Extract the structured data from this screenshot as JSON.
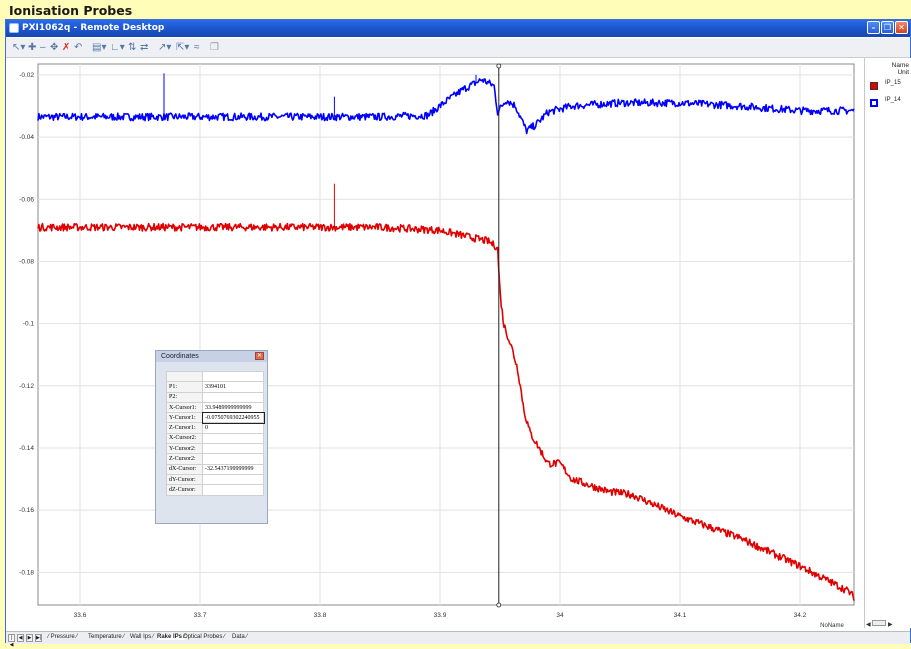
{
  "page_title": "Ionisation Probes",
  "window": {
    "title": "PXI1062q - Remote Desktop"
  },
  "legend": {
    "header_name": "Name",
    "header_unit": "Unit",
    "items": [
      {
        "label": "IP_15",
        "color": "#e00000"
      },
      {
        "label": "IP_14",
        "color": "#0000ff"
      }
    ]
  },
  "coords_dialog": {
    "title": "Coordinates",
    "rows": [
      {
        "key": "",
        "value": ""
      },
      {
        "key": "P1:",
        "value": "3394101"
      },
      {
        "key": "P2:",
        "value": ""
      },
      {
        "key": "X-Cursor1:",
        "value": "33.9489999999999"
      },
      {
        "key": "Y-Cursor1:",
        "value": "-0.0750769302240955"
      },
      {
        "key": "Z-Cursor1:",
        "value": "0"
      },
      {
        "key": "X-Cursor2:",
        "value": ""
      },
      {
        "key": "Y-Cursor2:",
        "value": ""
      },
      {
        "key": "Z-Cursor2:",
        "value": ""
      },
      {
        "key": "dX-Cursor:",
        "value": "-32.5437199999999"
      },
      {
        "key": "dY-Cursor:",
        "value": ""
      },
      {
        "key": "dZ-Cursor:",
        "value": ""
      }
    ]
  },
  "x_axis_name": "NoName",
  "sheet_tabs": [
    "Pressure",
    "Temperature",
    "Wall Ips",
    "Rake IPs",
    "Optical Probes",
    "Data"
  ],
  "active_tab": "Rake IPs",
  "chart_data": {
    "type": "line",
    "xlim": [
      33.565,
      34.245
    ],
    "ylim": [
      -0.1905,
      -0.0165
    ],
    "x_ticks": [
      "33.6",
      "33.7",
      "33.8",
      "33.9",
      "34",
      "34.1",
      "34.2"
    ],
    "y_ticks": [
      "-0.02",
      "-0.04",
      "-0.06",
      "-0.08",
      "-0.1",
      "-0.12",
      "-0.14",
      "-0.16",
      "-0.18"
    ],
    "grid": true,
    "cursor_x": 33.9489999999999,
    "series": [
      {
        "color": "#0000ff",
        "noise": 0.0012,
        "points": [
          [
            33.565,
            -0.0335
          ],
          [
            33.7,
            -0.0335
          ],
          [
            33.85,
            -0.0335
          ],
          [
            33.89,
            -0.033
          ],
          [
            33.905,
            -0.0285
          ],
          [
            33.92,
            -0.0245
          ],
          [
            33.935,
            -0.0215
          ],
          [
            33.945,
            -0.0235
          ],
          [
            33.948,
            -0.032
          ],
          [
            33.955,
            -0.028
          ],
          [
            33.963,
            -0.03
          ],
          [
            33.972,
            -0.038
          ],
          [
            33.98,
            -0.036
          ],
          [
            33.99,
            -0.032
          ],
          [
            34.01,
            -0.03
          ],
          [
            34.05,
            -0.029
          ],
          [
            34.1,
            -0.029
          ],
          [
            34.15,
            -0.03
          ],
          [
            34.2,
            -0.0315
          ],
          [
            34.245,
            -0.0315
          ]
        ],
        "spikes": [
          [
            33.67,
            -0.0195
          ],
          [
            33.812,
            -0.027
          ],
          [
            33.93,
            -0.02
          ]
        ]
      },
      {
        "color": "#e00000",
        "noise": 0.0012,
        "points": [
          [
            33.565,
            -0.069
          ],
          [
            33.7,
            -0.069
          ],
          [
            33.85,
            -0.069
          ],
          [
            33.9,
            -0.07
          ],
          [
            33.94,
            -0.0735
          ],
          [
            33.948,
            -0.0755
          ],
          [
            33.95,
            -0.09
          ],
          [
            33.953,
            -0.1
          ],
          [
            33.96,
            -0.108
          ],
          [
            33.965,
            -0.115
          ],
          [
            33.97,
            -0.128
          ],
          [
            33.975,
            -0.135
          ],
          [
            33.99,
            -0.145
          ],
          [
            34.0,
            -0.145
          ],
          [
            34.01,
            -0.15
          ],
          [
            34.04,
            -0.154
          ],
          [
            34.06,
            -0.155
          ],
          [
            34.1,
            -0.162
          ],
          [
            34.15,
            -0.169
          ],
          [
            34.2,
            -0.178
          ],
          [
            34.24,
            -0.186
          ],
          [
            34.245,
            -0.188
          ]
        ],
        "spikes": [
          [
            33.812,
            -0.055
          ]
        ]
      }
    ]
  }
}
